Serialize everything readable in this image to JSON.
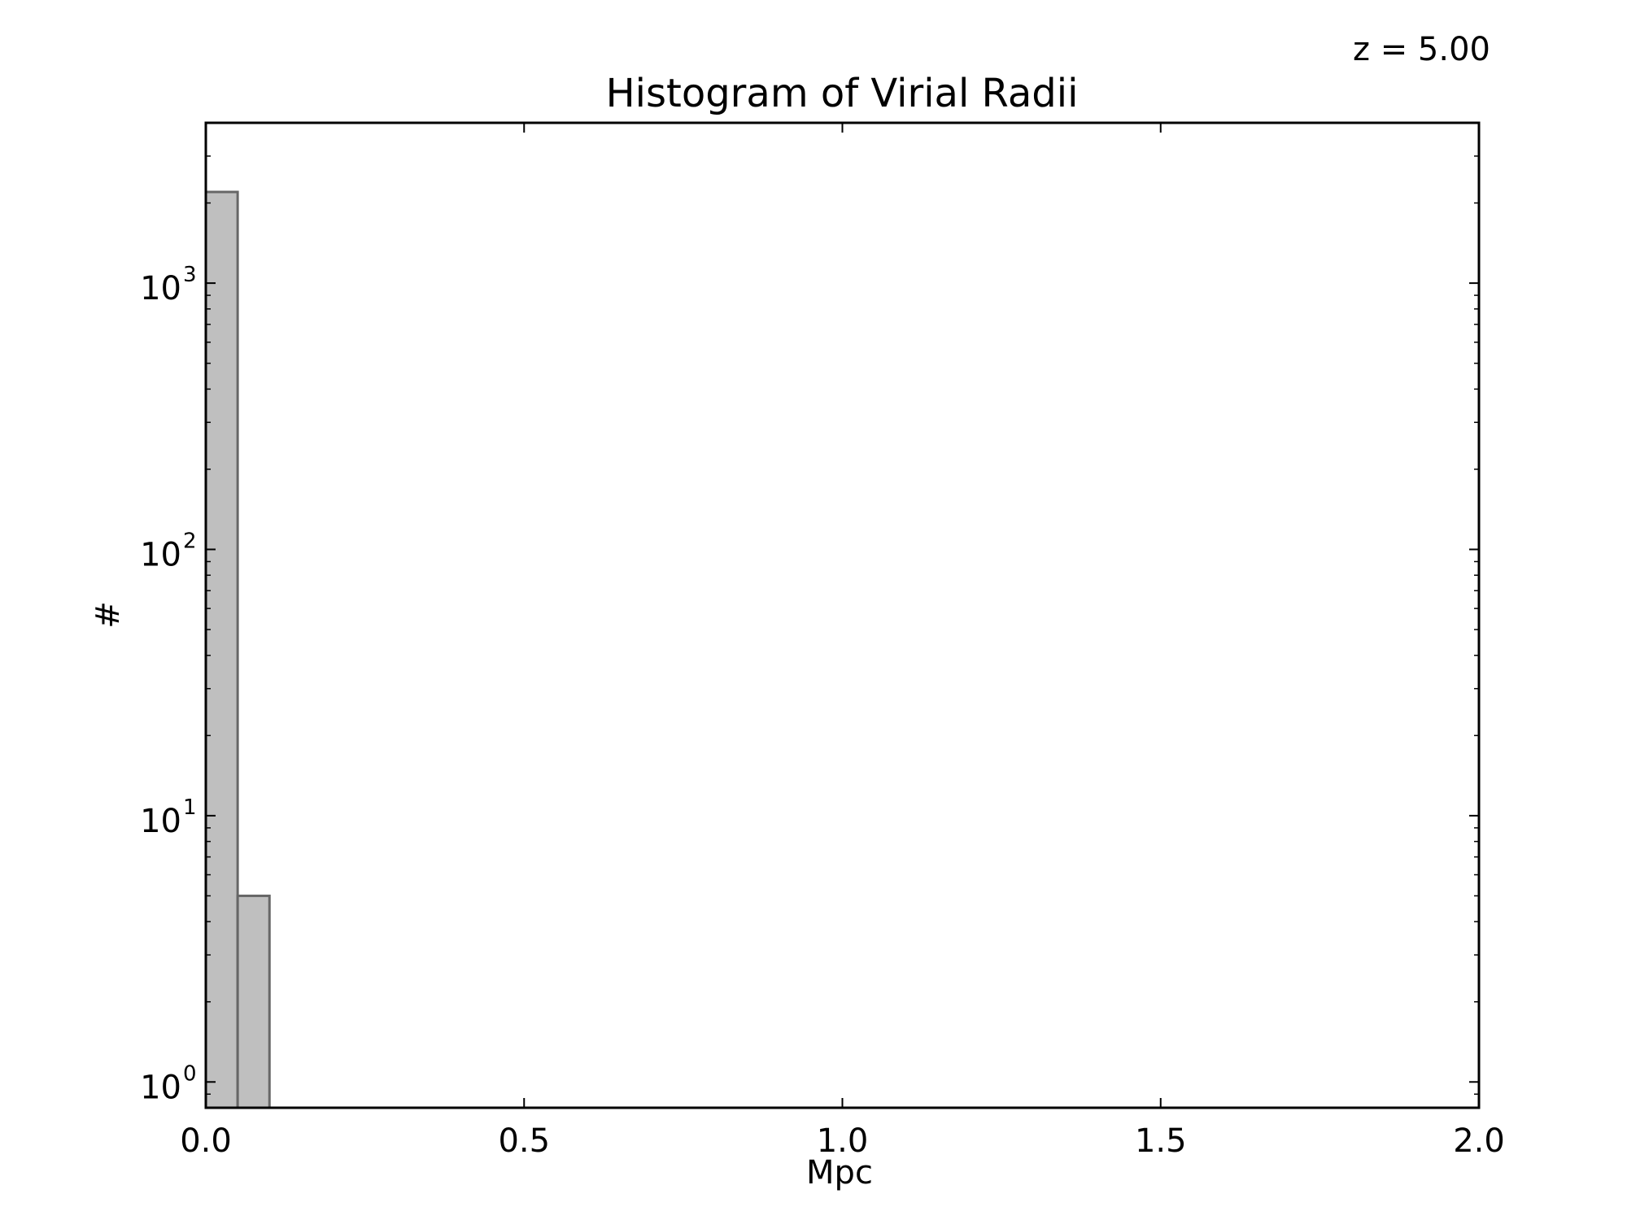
{
  "chart_data": {
    "type": "bar",
    "title": "Histogram of Virial Radii",
    "annotation": "z = 5.00",
    "xlabel": "Mpc",
    "ylabel": "#",
    "xlim": [
      0.0,
      2.0
    ],
    "ylim": [
      0.8,
      4000
    ],
    "yscale": "log",
    "grid": false,
    "x_ticks": [
      {
        "value": 0.0,
        "label": "0.0"
      },
      {
        "value": 0.5,
        "label": "0.5"
      },
      {
        "value": 1.0,
        "label": "1.0"
      },
      {
        "value": 1.5,
        "label": "1.5"
      },
      {
        "value": 2.0,
        "label": "2.0"
      }
    ],
    "y_ticks": [
      {
        "value": 1,
        "base": "10",
        "exp": "0"
      },
      {
        "value": 10,
        "base": "10",
        "exp": "1"
      },
      {
        "value": 100,
        "base": "10",
        "exp": "2"
      },
      {
        "value": 1000,
        "base": "10",
        "exp": "3"
      }
    ],
    "bins": [
      {
        "x0": 0.0,
        "x1": 0.05,
        "count": 2200
      },
      {
        "x0": 0.05,
        "x1": 0.1,
        "count": 5
      }
    ],
    "bar_fill": "#bfbfbf",
    "bar_edge": "#666666"
  }
}
